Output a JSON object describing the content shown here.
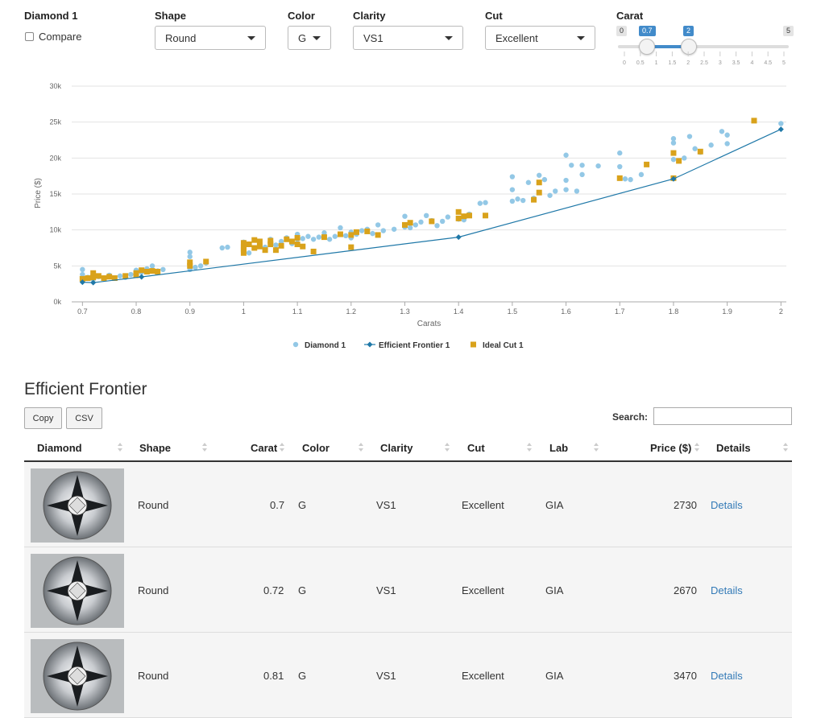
{
  "controls": {
    "diamond_label": "Diamond 1",
    "compare_label": "Compare",
    "shape": {
      "label": "Shape",
      "value": "Round"
    },
    "color": {
      "label": "Color",
      "value": "G"
    },
    "clarity": {
      "label": "Clarity",
      "value": "VS1"
    },
    "cut": {
      "label": "Cut",
      "value": "Excellent"
    },
    "carat": {
      "label": "Carat",
      "min": "0",
      "max": "5",
      "from": "0.7",
      "to": "2",
      "ticks": [
        "0",
        "0.5",
        "1",
        "1.5",
        "2",
        "2.5",
        "3",
        "3.5",
        "4",
        "4.5",
        "5"
      ]
    }
  },
  "chart_data": {
    "type": "scatter",
    "xlabel": "Carats",
    "ylabel": "Price ($)",
    "xlim": [
      0.68,
      2.01
    ],
    "ylim": [
      0,
      30000
    ],
    "x_ticks": [
      "0.7",
      "0.8",
      "0.9",
      "1",
      "1.1",
      "1.2",
      "1.3",
      "1.4",
      "1.5",
      "1.6",
      "1.7",
      "1.8",
      "1.9",
      "2"
    ],
    "y_ticks": [
      "0k",
      "5k",
      "10k",
      "15k",
      "20k",
      "25k",
      "30k"
    ],
    "grid": true,
    "legend_position": "bottom",
    "colors": {
      "diamond": "#93c8e6",
      "frontier": "#1f78a8",
      "ideal": "#d9a21b"
    },
    "series": [
      {
        "name": "Diamond 1",
        "kind": "scatter",
        "points": [
          [
            0.7,
            4500
          ],
          [
            0.7,
            3800
          ],
          [
            0.71,
            3400
          ],
          [
            0.72,
            3100
          ],
          [
            0.73,
            3500
          ],
          [
            0.74,
            3200
          ],
          [
            0.75,
            3700
          ],
          [
            0.76,
            3300
          ],
          [
            0.77,
            3600
          ],
          [
            0.78,
            3400
          ],
          [
            0.79,
            3800
          ],
          [
            0.8,
            3900
          ],
          [
            0.8,
            4400
          ],
          [
            0.81,
            4100
          ],
          [
            0.82,
            4600
          ],
          [
            0.83,
            5000
          ],
          [
            0.84,
            4300
          ],
          [
            0.85,
            4500
          ],
          [
            0.9,
            4500
          ],
          [
            0.9,
            5200
          ],
          [
            0.9,
            6300
          ],
          [
            0.9,
            6900
          ],
          [
            0.91,
            4800
          ],
          [
            0.92,
            5000
          ],
          [
            0.93,
            5400
          ],
          [
            0.96,
            7500
          ],
          [
            0.97,
            7600
          ],
          [
            1.0,
            8300
          ],
          [
            1.0,
            7800
          ],
          [
            1.01,
            6800
          ],
          [
            1.02,
            7500
          ],
          [
            1.03,
            8100
          ],
          [
            1.04,
            7600
          ],
          [
            1.05,
            8700
          ],
          [
            1.06,
            7900
          ],
          [
            1.07,
            8400
          ],
          [
            1.08,
            8900
          ],
          [
            1.09,
            8100
          ],
          [
            1.1,
            8700
          ],
          [
            1.1,
            9400
          ],
          [
            1.11,
            8800
          ],
          [
            1.12,
            9100
          ],
          [
            1.13,
            8700
          ],
          [
            1.14,
            9000
          ],
          [
            1.15,
            9600
          ],
          [
            1.16,
            8700
          ],
          [
            1.17,
            9100
          ],
          [
            1.18,
            10300
          ],
          [
            1.19,
            9200
          ],
          [
            1.2,
            8900
          ],
          [
            1.2,
            9700
          ],
          [
            1.21,
            9400
          ],
          [
            1.22,
            9900
          ],
          [
            1.23,
            10100
          ],
          [
            1.24,
            9500
          ],
          [
            1.25,
            10700
          ],
          [
            1.26,
            9900
          ],
          [
            1.28,
            10100
          ],
          [
            1.3,
            10400
          ],
          [
            1.3,
            11900
          ],
          [
            1.31,
            10300
          ],
          [
            1.32,
            10700
          ],
          [
            1.33,
            11100
          ],
          [
            1.34,
            12000
          ],
          [
            1.35,
            11300
          ],
          [
            1.36,
            10600
          ],
          [
            1.37,
            11200
          ],
          [
            1.38,
            11800
          ],
          [
            1.4,
            11500
          ],
          [
            1.41,
            11400
          ],
          [
            1.42,
            12200
          ],
          [
            1.44,
            13700
          ],
          [
            1.45,
            13800
          ],
          [
            1.5,
            14000
          ],
          [
            1.5,
            15600
          ],
          [
            1.5,
            17400
          ],
          [
            1.51,
            14300
          ],
          [
            1.52,
            14100
          ],
          [
            1.53,
            16600
          ],
          [
            1.54,
            14400
          ],
          [
            1.55,
            17600
          ],
          [
            1.56,
            17000
          ],
          [
            1.57,
            14800
          ],
          [
            1.58,
            15400
          ],
          [
            1.6,
            15600
          ],
          [
            1.6,
            16900
          ],
          [
            1.6,
            20400
          ],
          [
            1.61,
            19000
          ],
          [
            1.62,
            15400
          ],
          [
            1.63,
            17700
          ],
          [
            1.63,
            19000
          ],
          [
            1.66,
            18900
          ],
          [
            1.7,
            17200
          ],
          [
            1.7,
            18800
          ],
          [
            1.7,
            20700
          ],
          [
            1.71,
            17100
          ],
          [
            1.72,
            17000
          ],
          [
            1.74,
            17700
          ],
          [
            1.8,
            19800
          ],
          [
            1.8,
            22700
          ],
          [
            1.8,
            22100
          ],
          [
            1.82,
            20000
          ],
          [
            1.83,
            23000
          ],
          [
            1.84,
            21300
          ],
          [
            1.85,
            20800
          ],
          [
            1.87,
            21800
          ],
          [
            1.89,
            23700
          ],
          [
            1.9,
            23200
          ],
          [
            1.9,
            22000
          ],
          [
            2.0,
            24800
          ]
        ]
      },
      {
        "name": "Efficient Frontier 1",
        "kind": "line",
        "points": [
          [
            0.7,
            2730
          ],
          [
            0.72,
            2670
          ],
          [
            0.81,
            3470
          ],
          [
            1.4,
            9000
          ],
          [
            1.8,
            17100
          ],
          [
            2.0,
            24000
          ]
        ]
      },
      {
        "name": "Ideal Cut 1",
        "kind": "scatter",
        "points": [
          [
            0.7,
            3200
          ],
          [
            0.71,
            3300
          ],
          [
            0.72,
            3400
          ],
          [
            0.72,
            4000
          ],
          [
            0.73,
            3600
          ],
          [
            0.74,
            3300
          ],
          [
            0.75,
            3500
          ],
          [
            0.76,
            3300
          ],
          [
            0.78,
            3600
          ],
          [
            0.8,
            3700
          ],
          [
            0.8,
            4000
          ],
          [
            0.81,
            4400
          ],
          [
            0.82,
            4200
          ],
          [
            0.83,
            4300
          ],
          [
            0.84,
            4200
          ],
          [
            0.9,
            5000
          ],
          [
            0.9,
            5500
          ],
          [
            0.93,
            5600
          ],
          [
            1.0,
            6800
          ],
          [
            1.0,
            7300
          ],
          [
            1.0,
            7600
          ],
          [
            1.0,
            8200
          ],
          [
            1.01,
            8000
          ],
          [
            1.02,
            7500
          ],
          [
            1.02,
            8600
          ],
          [
            1.03,
            7700
          ],
          [
            1.03,
            8400
          ],
          [
            1.04,
            7200
          ],
          [
            1.05,
            8000
          ],
          [
            1.05,
            8500
          ],
          [
            1.06,
            7200
          ],
          [
            1.07,
            7800
          ],
          [
            1.08,
            8700
          ],
          [
            1.09,
            8400
          ],
          [
            1.1,
            8900
          ],
          [
            1.1,
            8000
          ],
          [
            1.11,
            7700
          ],
          [
            1.13,
            7000
          ],
          [
            1.15,
            9000
          ],
          [
            1.18,
            9400
          ],
          [
            1.2,
            9300
          ],
          [
            1.2,
            7600
          ],
          [
            1.21,
            9700
          ],
          [
            1.23,
            9800
          ],
          [
            1.25,
            9300
          ],
          [
            1.3,
            10700
          ],
          [
            1.31,
            11000
          ],
          [
            1.35,
            11200
          ],
          [
            1.4,
            11600
          ],
          [
            1.4,
            12500
          ],
          [
            1.41,
            11900
          ],
          [
            1.42,
            12000
          ],
          [
            1.45,
            12000
          ],
          [
            1.54,
            14200
          ],
          [
            1.55,
            15200
          ],
          [
            1.55,
            16600
          ],
          [
            1.7,
            17200
          ],
          [
            1.75,
            19100
          ],
          [
            1.8,
            17200
          ],
          [
            1.8,
            20700
          ],
          [
            1.81,
            19600
          ],
          [
            1.85,
            20900
          ],
          [
            1.95,
            25200
          ]
        ]
      }
    ]
  },
  "table": {
    "title": "Efficient Frontier",
    "buttons": [
      "Copy",
      "CSV"
    ],
    "search_label": "Search:",
    "columns": [
      "Diamond",
      "Shape",
      "Carat",
      "Color",
      "Clarity",
      "Cut",
      "Lab",
      "Price ($)",
      "Details"
    ],
    "rows": [
      {
        "shape": "Round",
        "carat": "0.72",
        "color": "G",
        "clarity": "VS1",
        "cut": "Excellent",
        "lab": "GIA",
        "price": "2670",
        "details": "Details"
      },
      {
        "shape": "Round",
        "carat": "0.81",
        "color": "G",
        "clarity": "VS1",
        "cut": "Excellent",
        "lab": "GIA",
        "price": "3470",
        "details": "Details"
      }
    ],
    "first_row": {
      "shape": "Round",
      "carat": "0.7",
      "color": "G",
      "clarity": "VS1",
      "cut": "Excellent",
      "lab": "GIA",
      "price": "2730",
      "details": "Details"
    }
  }
}
